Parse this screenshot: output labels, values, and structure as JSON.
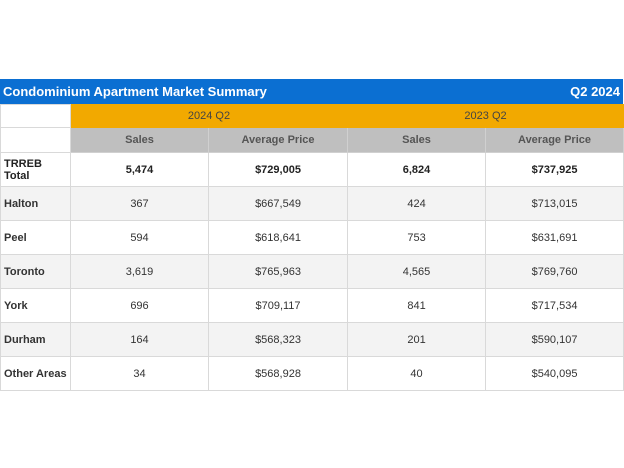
{
  "header": {
    "title": "Condominium Apartment Market Summary",
    "period": "Q2 2024"
  },
  "table": {
    "groups": [
      "2024 Q2",
      "2023 Q2"
    ],
    "columns": [
      "Sales",
      "Average Price",
      "Sales",
      "Average Price"
    ],
    "rows": [
      [
        "TRREB Total",
        "5,474",
        "$729,005",
        "6,824",
        "$737,925"
      ],
      [
        "Halton",
        "367",
        "$667,549",
        "424",
        "$713,015"
      ],
      [
        "Peel",
        "594",
        "$618,641",
        "753",
        "$631,691"
      ],
      [
        "Toronto",
        "3,619",
        "$765,963",
        "4,565",
        "$769,760"
      ],
      [
        "York",
        "696",
        "$709,117",
        "841",
        "$717,534"
      ],
      [
        "Durham",
        "164",
        "$568,323",
        "201",
        "$590,107"
      ],
      [
        "Other Areas",
        "34",
        "$568,928",
        "40",
        "$540,095"
      ]
    ]
  }
}
